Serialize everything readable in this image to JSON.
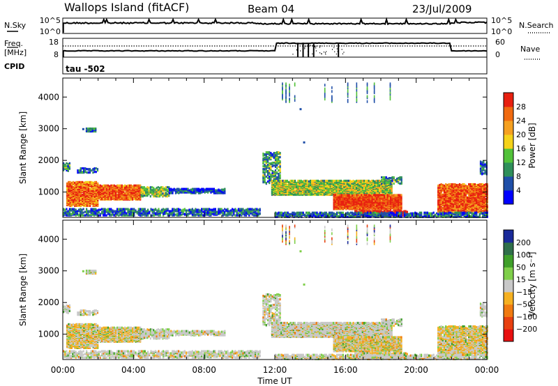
{
  "header": {
    "station": "Wallops Island (fitACF)",
    "beam": "Beam 04",
    "date": "23/Jul/2009"
  },
  "nsky_panel": {
    "label": "N.Sky",
    "left_ticks": [
      "10^5",
      "10^0"
    ],
    "right_ticks": [
      "10^5",
      "10^0"
    ],
    "right_label": "N.Search"
  },
  "freq_panel": {
    "label_line1": "Freq.",
    "label_line2": "[MHz]",
    "left_ticks": [
      "18",
      "8"
    ],
    "right_ticks": [
      "60",
      "0"
    ],
    "right_label": "Nave",
    "cpid_label": "CPID",
    "cpid_value": "tau -502"
  },
  "chart_data": [
    {
      "type": "heatmap",
      "name": "power",
      "ylabel": "Slant Range [km]",
      "yticks": [
        "1000",
        "2000",
        "3000",
        "4000"
      ],
      "ylim": [
        200,
        4600
      ],
      "xticks": [
        "00:00",
        "04:00",
        "08:00",
        "12:00",
        "16:00",
        "20:00",
        "00:00"
      ],
      "colorbar_label": "Power [dB]",
      "colorbar_ticks": [
        "4",
        "8",
        "12",
        "16",
        "20",
        "24",
        "28"
      ],
      "colors": [
        "#0000ff",
        "#1f4fa8",
        "#2f8f5a",
        "#52c23a",
        "#f5d21a",
        "#f5a020",
        "#f06a10",
        "#e82010"
      ]
    },
    {
      "type": "heatmap",
      "name": "velocity",
      "ylabel": "Slant Range [km]",
      "yticks": [
        "1000",
        "2000",
        "3000",
        "4000"
      ],
      "ylim": [
        200,
        4600
      ],
      "xticks": [
        "00:00",
        "04:00",
        "08:00",
        "12:00",
        "16:00",
        "20:00",
        "00:00"
      ],
      "xlabel": "Time UT",
      "colorbar_label": "Velocity [m s⁻¹]",
      "colorbar_ticks": [
        "200",
        "100",
        "50",
        "15",
        "−15",
        "−50",
        "−100",
        "−200"
      ],
      "colors": [
        "#1a2a9a",
        "#2f6f4a",
        "#3f9f2a",
        "#7fcf4a",
        "#c8c8c8",
        "#f5b020",
        "#f07a10",
        "#e84010",
        "#e81010"
      ]
    }
  ]
}
